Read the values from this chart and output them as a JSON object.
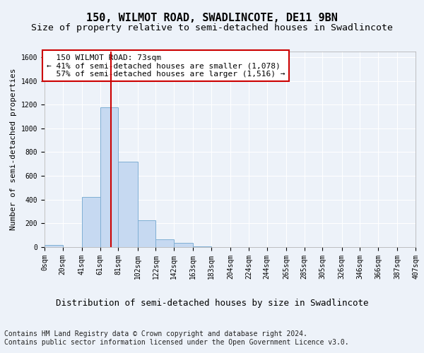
{
  "title": "150, WILMOT ROAD, SWADLINCOTE, DE11 9BN",
  "subtitle": "Size of property relative to semi-detached houses in Swadlincote",
  "xlabel": "Distribution of semi-detached houses by size in Swadlincote",
  "ylabel": "Number of semi-detached properties",
  "bar_left_edges": [
    0,
    20,
    41,
    61,
    81,
    102,
    122,
    142,
    163,
    183,
    204,
    224,
    244,
    265,
    285,
    305,
    326,
    346,
    366,
    387
  ],
  "bar_widths": [
    20,
    21,
    20,
    20,
    21,
    20,
    20,
    21,
    20,
    21,
    20,
    20,
    21,
    20,
    20,
    21,
    20,
    20,
    21,
    20
  ],
  "bar_heights": [
    20,
    0,
    420,
    1180,
    720,
    225,
    65,
    35,
    5,
    0,
    0,
    0,
    0,
    0,
    0,
    0,
    0,
    0,
    0,
    0
  ],
  "bar_color": "#c6d9f1",
  "bar_edgecolor": "#7fafd4",
  "ylim": [
    0,
    1650
  ],
  "xlim": [
    0,
    407
  ],
  "property_size": 73,
  "vline_color": "#cc0000",
  "annotation_text": "  150 WILMOT ROAD: 73sqm\n← 41% of semi-detached houses are smaller (1,078)\n  57% of semi-detached houses are larger (1,516) →",
  "annotation_box_edgecolor": "#cc0000",
  "annotation_box_facecolor": "white",
  "tick_labels": [
    "0sqm",
    "20sqm",
    "41sqm",
    "61sqm",
    "81sqm",
    "102sqm",
    "122sqm",
    "142sqm",
    "163sqm",
    "183sqm",
    "204sqm",
    "224sqm",
    "244sqm",
    "265sqm",
    "285sqm",
    "305sqm",
    "326sqm",
    "346sqm",
    "366sqm",
    "387sqm",
    "407sqm"
  ],
  "tick_positions": [
    0,
    20,
    41,
    61,
    81,
    102,
    122,
    142,
    163,
    183,
    204,
    224,
    244,
    265,
    285,
    305,
    326,
    346,
    366,
    387,
    407
  ],
  "yticks": [
    0,
    200,
    400,
    600,
    800,
    1000,
    1200,
    1400,
    1600
  ],
  "footer_line1": "Contains HM Land Registry data © Crown copyright and database right 2024.",
  "footer_line2": "Contains public sector information licensed under the Open Government Licence v3.0.",
  "title_fontsize": 11,
  "subtitle_fontsize": 9.5,
  "xlabel_fontsize": 9,
  "ylabel_fontsize": 8,
  "tick_fontsize": 7,
  "annotation_fontsize": 8,
  "footer_fontsize": 7,
  "background_color": "#edf2f9",
  "plot_bg_color": "#edf2f9",
  "grid_color": "white"
}
